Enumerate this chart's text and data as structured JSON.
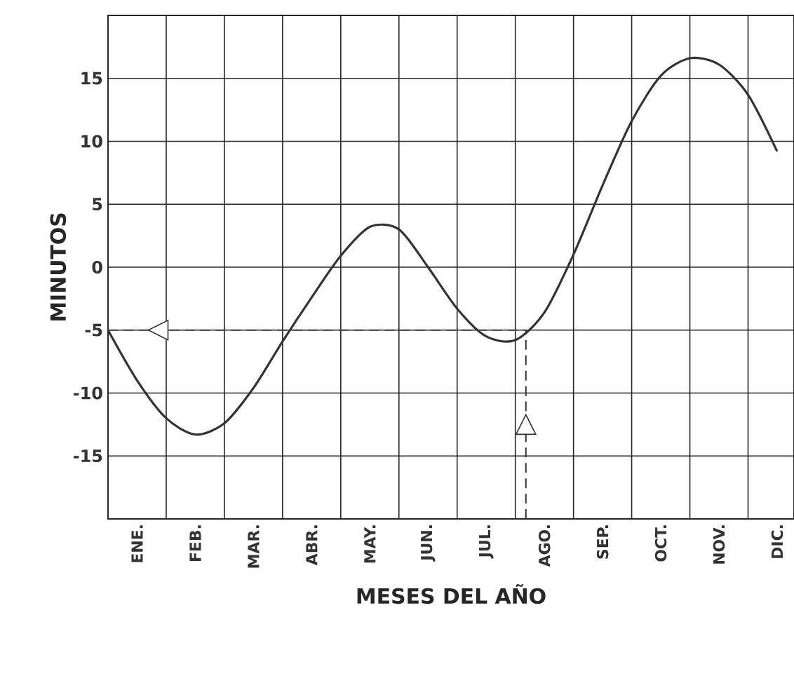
{
  "chart_data": {
    "type": "line",
    "xlabel": "MESES DEL AÑO",
    "ylabel": "MINUTOS",
    "categories": [
      null,
      "ENE.",
      null,
      "FEB.",
      null,
      "MAR.",
      null,
      "ABR.",
      null,
      "MAY.",
      null,
      "JUN.",
      null,
      "JUL.",
      null,
      "AGO.",
      null,
      "SEP.",
      null,
      "OCT.",
      null,
      "NOV.",
      null,
      "DIC."
    ],
    "series": [
      {
        "color": "#333333",
        "values": [
          -5,
          -9.0,
          -12.0,
          -13.3,
          -12.4,
          -9.6,
          -5.9,
          -2.4,
          0.9,
          3.2,
          3.0,
          0.0,
          -3.3,
          -5.5,
          -5.8,
          -3.6,
          1.0,
          6.5,
          11.6,
          15.2,
          16.6,
          16.1,
          13.7,
          9.2
        ]
      }
    ],
    "ref_lines": [
      {
        "axis": "y",
        "value": -5,
        "color": "#444444",
        "line_style": "dashed"
      }
    ],
    "ylim": [
      -20,
      20
    ],
    "yticks": [
      -15,
      -10,
      -5,
      0,
      5,
      10,
      15
    ],
    "grid": true
  }
}
